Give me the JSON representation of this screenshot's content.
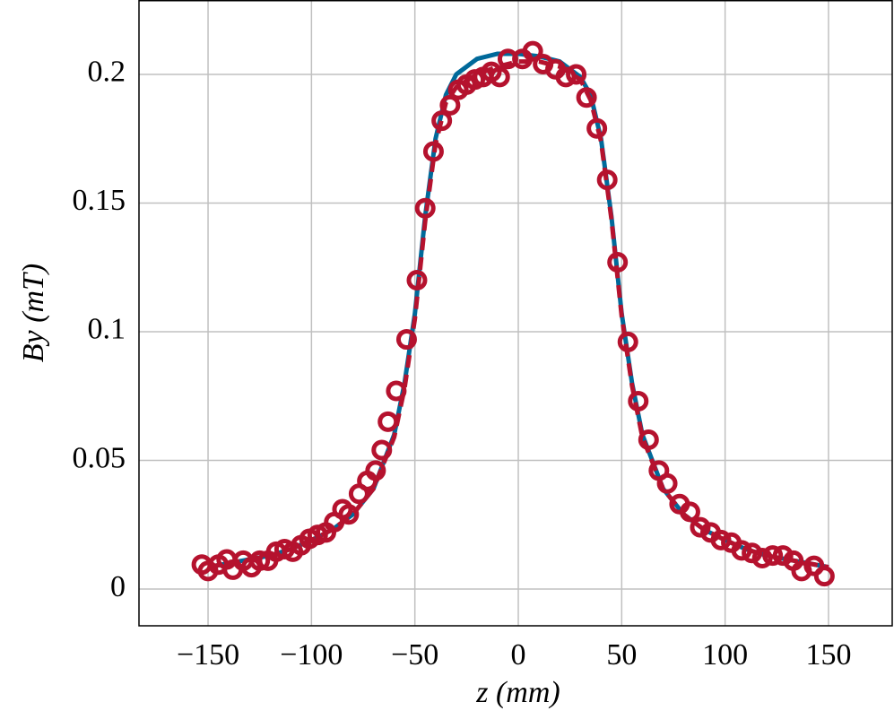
{
  "chart_data": {
    "type": "line",
    "xlabel": "z (mm)",
    "ylabel": "By (mT)",
    "xlim": [
      -183.4,
      180.8
    ],
    "ylim": [
      -0.0143,
      0.2289
    ],
    "xticks": [
      {
        "value": -150,
        "label": "−150"
      },
      {
        "value": -100,
        "label": "−100"
      },
      {
        "value": -50,
        "label": "−50"
      },
      0,
      50,
      100,
      150
    ],
    "yticks": [
      0,
      0.05,
      0.1,
      0.15,
      0.2
    ],
    "grid": true,
    "series": [
      {
        "color": "#00699a",
        "style": "solid",
        "x": [
          -150,
          -140,
          -130,
          -120,
          -110,
          -100,
          -90,
          -80,
          -70,
          -60,
          -55,
          -50,
          -45,
          -40,
          -35,
          -30,
          -20,
          -10,
          0,
          10,
          20,
          30,
          35,
          40,
          45,
          50,
          55,
          60,
          70,
          80,
          90,
          100,
          110,
          120,
          130,
          140,
          150
        ],
        "values": [
          0.0085,
          0.01,
          0.0115,
          0.013,
          0.0155,
          0.019,
          0.023,
          0.029,
          0.039,
          0.06,
          0.08,
          0.107,
          0.145,
          0.175,
          0.192,
          0.2,
          0.206,
          0.208,
          0.208,
          0.207,
          0.205,
          0.199,
          0.192,
          0.175,
          0.145,
          0.107,
          0.08,
          0.06,
          0.039,
          0.029,
          0.023,
          0.019,
          0.0155,
          0.013,
          0.0115,
          0.01,
          0.0085
        ]
      },
      {
        "color": "#b5122e",
        "style": "dashed",
        "x": [
          -150,
          -140,
          -130,
          -120,
          -110,
          -100,
          -90,
          -80,
          -70,
          -60,
          -55,
          -50,
          -45,
          -40,
          -35,
          -30,
          -20,
          -10,
          0,
          10,
          20,
          30,
          35,
          40,
          45,
          50,
          55,
          60,
          70,
          80,
          90,
          100,
          110,
          120,
          130,
          140,
          150
        ],
        "values": [
          0.0085,
          0.01,
          0.0115,
          0.013,
          0.0155,
          0.019,
          0.023,
          0.029,
          0.039,
          0.059,
          0.078,
          0.105,
          0.143,
          0.173,
          0.189,
          0.195,
          0.2,
          0.203,
          0.205,
          0.205,
          0.203,
          0.198,
          0.19,
          0.174,
          0.144,
          0.106,
          0.079,
          0.059,
          0.039,
          0.029,
          0.023,
          0.019,
          0.0155,
          0.013,
          0.0115,
          0.01,
          0.0085
        ]
      },
      {
        "color": "#b5122e",
        "style": "circle",
        "x": [
          -153,
          -150,
          -145,
          -141,
          -138,
          -133,
          -129,
          -125,
          -121,
          -117,
          -113,
          -109,
          -105,
          -101,
          -97,
          -93,
          -89,
          -85,
          -82,
          -77,
          -73,
          -69,
          -66,
          -63,
          -59,
          -54,
          -49,
          -45,
          -41,
          -37,
          -33,
          -29,
          -25,
          -21,
          -17,
          -13,
          -9,
          -5,
          2,
          7,
          12,
          18,
          23,
          28,
          33,
          38,
          43,
          48,
          53,
          58,
          63,
          68,
          72,
          78,
          83,
          88,
          93,
          98,
          103,
          108,
          113,
          118,
          123,
          128,
          133,
          137,
          143,
          148
        ],
        "values": [
          0.0095,
          0.007,
          0.0095,
          0.0115,
          0.0075,
          0.011,
          0.0085,
          0.011,
          0.011,
          0.0145,
          0.0155,
          0.0145,
          0.017,
          0.0195,
          0.021,
          0.022,
          0.026,
          0.031,
          0.029,
          0.037,
          0.042,
          0.046,
          0.054,
          0.065,
          0.077,
          0.097,
          0.12,
          0.148,
          0.17,
          0.182,
          0.188,
          0.194,
          0.196,
          0.198,
          0.199,
          0.201,
          0.199,
          0.206,
          0.206,
          0.209,
          0.204,
          0.202,
          0.199,
          0.2,
          0.191,
          0.179,
          0.159,
          0.127,
          0.096,
          0.073,
          0.058,
          0.046,
          0.041,
          0.033,
          0.03,
          0.024,
          0.022,
          0.019,
          0.018,
          0.015,
          0.014,
          0.012,
          0.013,
          0.013,
          0.011,
          0.007,
          0.009,
          0.005
        ]
      }
    ]
  }
}
